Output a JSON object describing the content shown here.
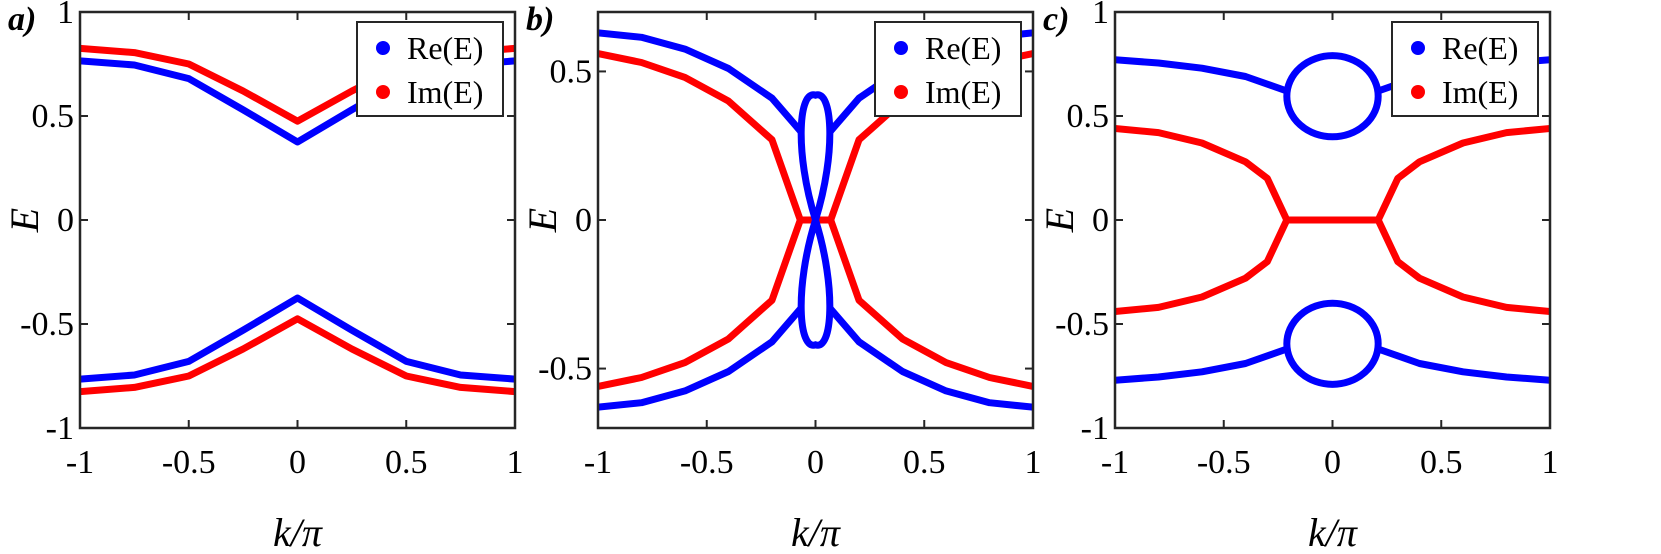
{
  "colors": {
    "re": "#0000ff",
    "im": "#ff0000"
  },
  "chart_data": [
    {
      "type": "line",
      "panel_label": "a)",
      "xlabel": "k/π",
      "ylabel": "E",
      "xlim": [
        -1,
        1
      ],
      "ylim": [
        -1,
        1
      ],
      "xticks": [
        "-1",
        "-0.5",
        "0",
        "0.5",
        "1"
      ],
      "yticks": [
        "-1",
        "-0.5",
        "0",
        "0.5",
        "1"
      ],
      "legend": {
        "entries": [
          "Re(E)",
          "Im(E)"
        ],
        "placement": "top-right"
      },
      "series": [
        {
          "name": "Re(E)",
          "x": [
            -1,
            -0.75,
            -0.5,
            -0.25,
            0,
            0.25,
            0.5,
            0.75,
            1
          ],
          "branches": [
            [
              0.765,
              0.745,
              0.68,
              0.53,
              0.375,
              0.53,
              0.68,
              0.745,
              0.765
            ],
            [
              -0.765,
              -0.745,
              -0.68,
              -0.53,
              -0.375,
              -0.53,
              -0.68,
              -0.745,
              -0.765
            ]
          ]
        },
        {
          "name": "Im(E)",
          "x": [
            -1,
            -0.75,
            -0.5,
            -0.25,
            0,
            0.25,
            0.5,
            0.75,
            1
          ],
          "branches": [
            [
              0.825,
              0.805,
              0.75,
              0.62,
              0.475,
              0.62,
              0.75,
              0.805,
              0.825
            ],
            [
              -0.825,
              -0.805,
              -0.75,
              -0.62,
              -0.475,
              -0.62,
              -0.75,
              -0.805,
              -0.825
            ]
          ]
        }
      ]
    },
    {
      "type": "line",
      "panel_label": "b)",
      "xlabel": "k/π",
      "ylabel": "E",
      "xlim": [
        -1,
        1
      ],
      "ylim": [
        -0.7,
        0.7
      ],
      "xticks": [
        "-1",
        "-0.5",
        "0",
        "0.5",
        "1"
      ],
      "yticks": [
        "-0.5",
        "0",
        "0.5"
      ],
      "legend": {
        "entries": [
          "Re(E)",
          "Im(E)"
        ],
        "placement": "top-right"
      },
      "series": [
        {
          "name": "Re(E)",
          "x": [
            -1,
            -0.8,
            -0.6,
            -0.4,
            -0.2,
            -0.07,
            0.07,
            0.2,
            0.4,
            0.6,
            0.8,
            1
          ],
          "branches": [
            [
              0.63,
              0.615,
              0.575,
              0.51,
              0.41,
              0.3,
              0.3,
              0.41,
              0.51,
              0.575,
              0.615,
              0.63
            ],
            [
              -0.63,
              -0.615,
              -0.575,
              -0.51,
              -0.41,
              -0.3,
              -0.3,
              -0.41,
              -0.51,
              -0.575,
              -0.615,
              -0.63
            ]
          ],
          "loop": {
            "x_half_width": 0.07,
            "y_extreme": 0.42
          }
        },
        {
          "name": "Im(E)",
          "x": [
            -1,
            -0.8,
            -0.6,
            -0.4,
            -0.2,
            -0.07,
            0.07,
            0.2,
            0.4,
            0.6,
            0.8,
            1
          ],
          "branches": [
            [
              0.56,
              0.53,
              0.48,
              0.4,
              0.27,
              0.0,
              0.0,
              0.27,
              0.4,
              0.48,
              0.53,
              0.56
            ],
            [
              -0.56,
              -0.53,
              -0.48,
              -0.4,
              -0.27,
              0.0,
              0.0,
              -0.27,
              -0.4,
              -0.48,
              -0.53,
              -0.56
            ]
          ]
        }
      ]
    },
    {
      "type": "line",
      "panel_label": "c)",
      "xlabel": "k/π",
      "ylabel": "E",
      "xlim": [
        -1,
        1
      ],
      "ylim": [
        -1,
        1
      ],
      "xticks": [
        "-1",
        "-0.5",
        "0",
        "0.5",
        "1"
      ],
      "yticks": [
        "-1",
        "-0.5",
        "0",
        "0.5",
        "1"
      ],
      "legend": {
        "entries": [
          "Re(E)",
          "Im(E)"
        ],
        "placement": "top-right"
      },
      "series": [
        {
          "name": "Re(E)",
          "x": [
            -1,
            -0.8,
            -0.6,
            -0.4,
            -0.21,
            0.21,
            0.4,
            0.6,
            0.8,
            1
          ],
          "branches": [
            [
              0.77,
              0.755,
              0.73,
              0.69,
              0.62,
              0.62,
              0.69,
              0.73,
              0.755,
              0.77
            ],
            [
              -0.77,
              -0.755,
              -0.73,
              -0.69,
              -0.62,
              -0.62,
              -0.69,
              -0.73,
              -0.755,
              -0.77
            ]
          ],
          "loops": [
            {
              "center": 0.6,
              "y_top": 0.79,
              "y_bottom": 0.4
            },
            {
              "center": -0.6,
              "y_top": -0.4,
              "y_bottom": -0.79
            }
          ]
        },
        {
          "name": "Im(E)",
          "x": [
            -1,
            -0.8,
            -0.6,
            -0.4,
            -0.3,
            -0.21,
            0.21,
            0.3,
            0.4,
            0.6,
            0.8,
            1
          ],
          "branches": [
            [
              0.44,
              0.42,
              0.37,
              0.28,
              0.2,
              0.0,
              0.0,
              0.2,
              0.28,
              0.37,
              0.42,
              0.44
            ],
            [
              -0.44,
              -0.42,
              -0.37,
              -0.28,
              -0.2,
              0.0,
              0.0,
              -0.2,
              -0.28,
              -0.37,
              -0.42,
              -0.44
            ]
          ]
        }
      ]
    }
  ]
}
